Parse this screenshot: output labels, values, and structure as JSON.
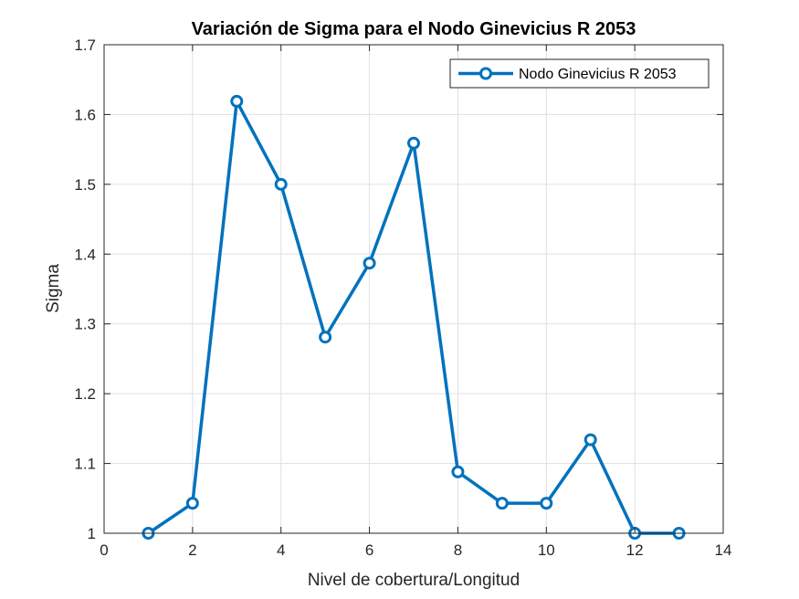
{
  "chart_data": {
    "type": "line",
    "title": "Variación de Sigma para el Nodo Ginevicius R 2053",
    "xlabel": "Nivel de cobertura/Longitud",
    "ylabel": "Sigma",
    "xlim": [
      0,
      14
    ],
    "ylim": [
      1,
      1.7
    ],
    "xticks": [
      0,
      2,
      4,
      6,
      8,
      10,
      12,
      14
    ],
    "yticks": [
      1,
      1.1,
      1.2,
      1.3,
      1.4,
      1.5,
      1.6,
      1.7
    ],
    "xtick_labels": [
      "0",
      "2",
      "4",
      "6",
      "8",
      "10",
      "12",
      "14"
    ],
    "ytick_labels": [
      "1",
      "1.1",
      "1.2",
      "1.3",
      "1.4",
      "1.5",
      "1.6",
      "1.7"
    ],
    "grid": true,
    "legend_position": "top-right",
    "series": [
      {
        "name": "Nodo Ginevicius R 2053",
        "color": "#0072BD",
        "marker": "circle",
        "x": [
          1,
          2,
          3,
          4,
          5,
          6,
          7,
          8,
          9,
          10,
          11,
          12,
          13
        ],
        "y": [
          1.0,
          1.043,
          1.619,
          1.5,
          1.281,
          1.387,
          1.559,
          1.088,
          1.043,
          1.043,
          1.134,
          1.0,
          1.0
        ]
      }
    ]
  }
}
